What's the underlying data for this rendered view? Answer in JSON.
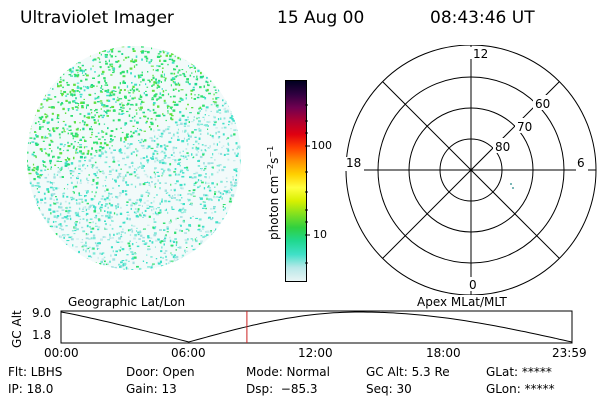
{
  "header": {
    "instrument": "Ultraviolet Imager",
    "date": "15 Aug 00",
    "time": "08:43:46 UT"
  },
  "colorbar": {
    "unit_label": "photon cm",
    "unit_sup1": "−2",
    "unit_mid": "s",
    "unit_sup2": "−1",
    "tick_100": "100",
    "tick_10": "10",
    "colors": [
      "#e8f4f4",
      "#b8e8e8",
      "#40e0c8",
      "#20d890",
      "#30d040",
      "#80e020",
      "#d8f000",
      "#ffff40",
      "#ffd000",
      "#ff9000",
      "#ff4000",
      "#e00010",
      "#b00030",
      "#700050",
      "#300040",
      "#000020"
    ]
  },
  "polar_grid": {
    "mlt_labels": {
      "top": "12",
      "left": "18",
      "right": "6",
      "bottom": "0"
    },
    "lat_labels": [
      "60",
      "70",
      "80"
    ]
  },
  "orbit_plot": {
    "left_title": "Geographic Lat/Lon",
    "right_title": "Apex MLat/MLT",
    "y_axis_label": "GC Alt",
    "y_tick_top": "9.0",
    "y_tick_bottom": "1.8",
    "x_ticks": [
      "00:00",
      "06:00",
      "12:00",
      "18:00",
      "23:59"
    ],
    "current_time_fraction": 0.3637
  },
  "footer": {
    "col1": [
      "Flt: LBHS",
      "IP: 18.0"
    ],
    "col2": [
      "Door: Open",
      "Gain: 13"
    ],
    "col3": [
      "Mode: Normal",
      "Dsp:  −85.3"
    ],
    "col4": [
      "GC Alt: 5.3 Re",
      "Seq: 30"
    ],
    "col5": [
      "GLat: *****",
      "GLon: *****"
    ]
  }
}
